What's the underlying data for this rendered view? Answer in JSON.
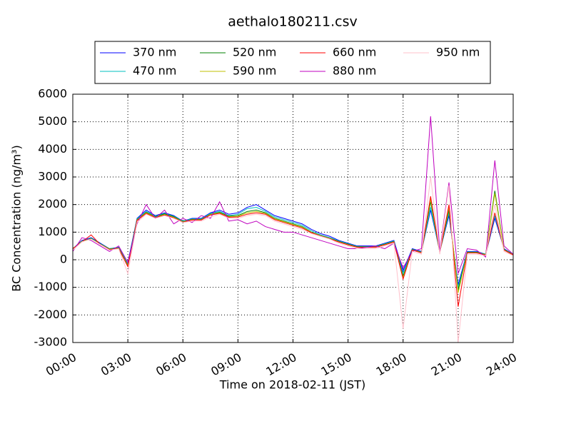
{
  "chart_data": {
    "type": "line",
    "title": "aethalo180211.csv",
    "xlabel": "Time on 2018-02-11 (JST)",
    "ylabel": "BC Concentration (ng/m³)",
    "x": [
      0,
      0.5,
      1,
      1.5,
      2,
      2.5,
      3,
      3.5,
      4,
      4.5,
      5,
      5.5,
      6,
      6.5,
      7,
      7.5,
      8,
      8.5,
      9,
      9.5,
      10,
      10.5,
      11,
      11.5,
      12,
      12.5,
      13,
      13.5,
      14,
      14.5,
      15,
      15.5,
      16,
      16.5,
      17,
      17.5,
      18,
      18.5,
      19,
      19.5,
      20,
      20.5,
      21,
      21.5,
      22,
      22.5,
      23,
      23.5,
      24
    ],
    "xlim": [
      0,
      24
    ],
    "xticks": [
      {
        "value": 0,
        "label": "00:00"
      },
      {
        "value": 3,
        "label": "03:00"
      },
      {
        "value": 6,
        "label": "06:00"
      },
      {
        "value": 9,
        "label": "09:00"
      },
      {
        "value": 12,
        "label": "12:00"
      },
      {
        "value": 15,
        "label": "15:00"
      },
      {
        "value": 18,
        "label": "18:00"
      },
      {
        "value": 21,
        "label": "21:00"
      },
      {
        "value": 24,
        "label": "24:00"
      }
    ],
    "ylim": [
      -3000,
      6000
    ],
    "yticks": [
      -3000,
      -2000,
      -1000,
      0,
      1000,
      2000,
      3000,
      4000,
      5000,
      6000
    ],
    "grid": true,
    "legend": "upper center",
    "series": [
      {
        "name": "370 nm",
        "color": "#0000ff",
        "values": [
          400,
          700,
          800,
          600,
          400,
          450,
          -100,
          1500,
          1800,
          1600,
          1700,
          1600,
          1400,
          1500,
          1500,
          1700,
          1800,
          1650,
          1700,
          1900,
          2000,
          1800,
          1600,
          1500,
          1400,
          1300,
          1100,
          950,
          850,
          700,
          600,
          500,
          500,
          500,
          600,
          700,
          -400,
          400,
          300,
          1800,
          300,
          1600,
          -900,
          300,
          300,
          200,
          1500,
          400,
          200
        ]
      },
      {
        "name": "470 nm",
        "color": "#00bfbf",
        "values": [
          400,
          680,
          780,
          580,
          400,
          440,
          -150,
          1480,
          1750,
          1580,
          1680,
          1580,
          1400,
          1480,
          1480,
          1680,
          1750,
          1600,
          1650,
          1850,
          1900,
          1750,
          1550,
          1450,
          1350,
          1250,
          1050,
          900,
          800,
          680,
          580,
          480,
          480,
          480,
          580,
          680,
          -500,
          380,
          280,
          1900,
          280,
          1700,
          -1000,
          280,
          280,
          200,
          1600,
          380,
          200
        ]
      },
      {
        "name": "520 nm",
        "color": "#008000",
        "values": [
          400,
          670,
          770,
          570,
          390,
          430,
          -200,
          1450,
          1720,
          1560,
          1660,
          1560,
          1380,
          1460,
          1460,
          1650,
          1720,
          1580,
          1600,
          1750,
          1800,
          1700,
          1500,
          1400,
          1300,
          1200,
          1000,
          880,
          780,
          660,
          560,
          470,
          470,
          470,
          560,
          660,
          -600,
          370,
          270,
          2100,
          270,
          1800,
          -1100,
          270,
          270,
          190,
          2500,
          370,
          190
        ]
      },
      {
        "name": "590 nm",
        "color": "#bfbf00",
        "values": [
          400,
          660,
          760,
          560,
          380,
          420,
          -220,
          1440,
          1700,
          1540,
          1640,
          1540,
          1370,
          1450,
          1450,
          1640,
          1700,
          1560,
          1580,
          1700,
          1750,
          1680,
          1480,
          1380,
          1280,
          1180,
          990,
          870,
          770,
          650,
          550,
          460,
          460,
          460,
          550,
          650,
          -650,
          360,
          260,
          2200,
          260,
          1900,
          -1200,
          260,
          260,
          180,
          2400,
          360,
          180
        ]
      },
      {
        "name": "660 nm",
        "color": "#ff0000",
        "values": [
          400,
          650,
          900,
          550,
          370,
          410,
          -250,
          1420,
          1680,
          1520,
          1620,
          1520,
          1360,
          1440,
          1440,
          1620,
          1680,
          1540,
          1550,
          1650,
          1700,
          1650,
          1450,
          1350,
          1250,
          1150,
          980,
          860,
          760,
          640,
          540,
          450,
          450,
          450,
          540,
          640,
          -700,
          350,
          250,
          2300,
          250,
          2000,
          -1700,
          250,
          250,
          170,
          1700,
          350,
          170
        ]
      },
      {
        "name": "880 nm",
        "color": "#bf00bf",
        "values": [
          300,
          800,
          700,
          500,
          300,
          500,
          -100,
          1300,
          2000,
          1500,
          1800,
          1300,
          1500,
          1350,
          1600,
          1500,
          2100,
          1400,
          1450,
          1300,
          1400,
          1200,
          1100,
          1000,
          1000,
          900,
          800,
          700,
          600,
          500,
          400,
          400,
          450,
          500,
          400,
          600,
          -300,
          300,
          400,
          5200,
          300,
          2800,
          -500,
          400,
          350,
          100,
          3600,
          500,
          200
        ]
      },
      {
        "name": "950 nm",
        "color": "#ffc0cb",
        "values": [
          350,
          650,
          750,
          550,
          350,
          400,
          -500,
          1350,
          1650,
          1500,
          1600,
          1500,
          1350,
          1400,
          1400,
          1550,
          1650,
          1500,
          1500,
          1600,
          1650,
          1600,
          1400,
          1300,
          1200,
          1100,
          950,
          850,
          750,
          600,
          500,
          400,
          400,
          400,
          500,
          600,
          -2500,
          300,
          200,
          3000,
          200,
          2700,
          -3000,
          200,
          200,
          150,
          2000,
          300,
          150
        ]
      }
    ]
  }
}
